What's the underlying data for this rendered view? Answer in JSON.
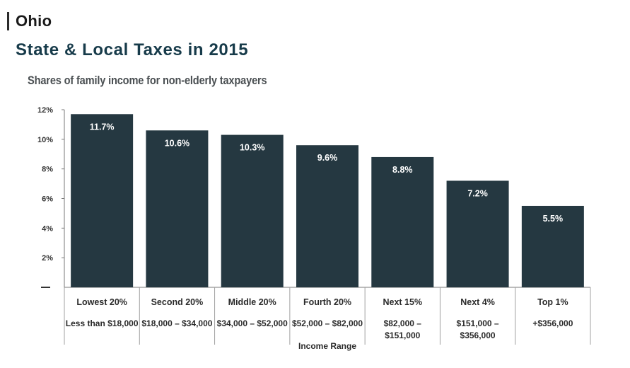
{
  "header": {
    "state": "Ohio",
    "title": "State & Local Taxes in 2015",
    "subtitle": "Shares of family income for non-elderly taxpayers"
  },
  "chart_data": {
    "type": "bar",
    "categories": [
      "Lowest 20%",
      "Second 20%",
      "Middle 20%",
      "Fourth 20%",
      "Next 15%",
      "Next 4%",
      "Top 1%"
    ],
    "income_ranges": [
      [
        "Less than $18,000"
      ],
      [
        "$18,000 – $34,000"
      ],
      [
        "$34,000 – $52,000"
      ],
      [
        "$52,000 – $82,000"
      ],
      [
        "$82,000 –",
        "$151,000"
      ],
      [
        "$151,000 –",
        "$356,000"
      ],
      [
        "+$356,000"
      ]
    ],
    "values": [
      11.7,
      10.6,
      10.3,
      9.6,
      8.8,
      7.2,
      5.5
    ],
    "value_labels": [
      "11.7%",
      "10.6%",
      "10.3%",
      "9.6%",
      "8.8%",
      "7.2%",
      "5.5%"
    ],
    "y_ticks": [
      2,
      4,
      6,
      8,
      10,
      12
    ],
    "y_tick_labels": [
      "2%",
      "4%",
      "6%",
      "8%",
      "10%",
      "12%"
    ],
    "ylim": [
      0,
      12
    ],
    "xlabel": "Income Range",
    "ylabel": "",
    "bar_color": "#253841",
    "grid": false
  }
}
